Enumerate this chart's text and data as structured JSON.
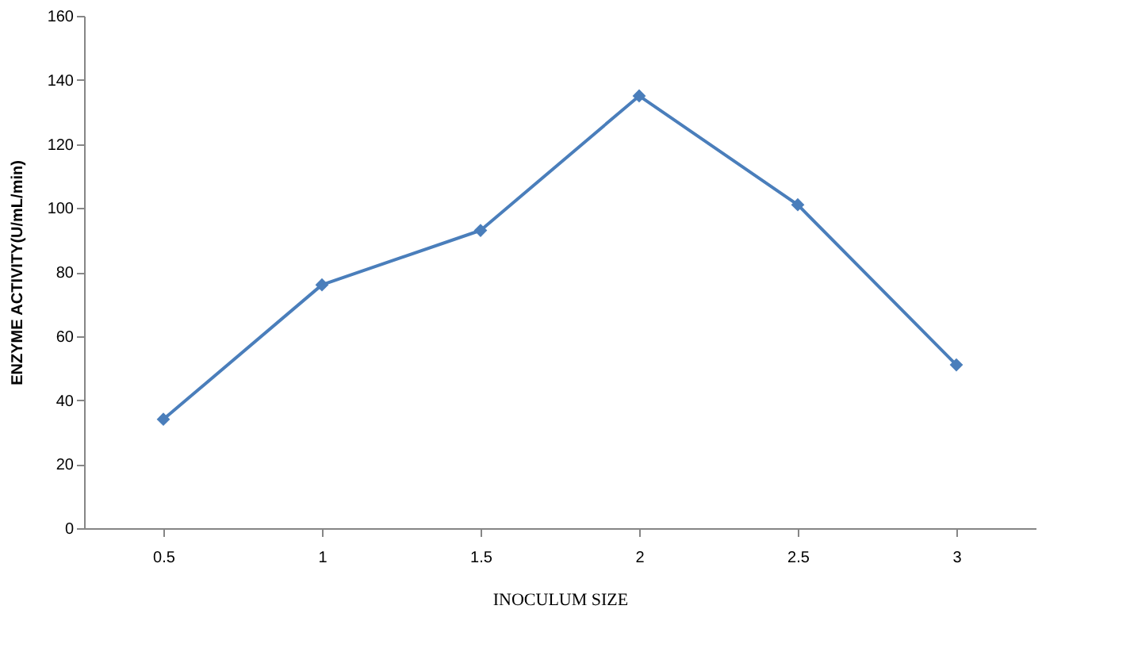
{
  "chart_data": {
    "type": "line",
    "xlabel": "INOCULUM  SIZE",
    "ylabel": "ENZYME ACTIVITY(U/mL/min)",
    "categories": [
      "0.5",
      "1",
      "1.5",
      "2",
      "2.5",
      "3"
    ],
    "series": [
      {
        "color": "#4a7ebb",
        "values": [
          34,
          76,
          93,
          135,
          101,
          51
        ]
      }
    ],
    "ylim": [
      0,
      160
    ],
    "yticks": [
      0,
      20,
      40,
      60,
      80,
      100,
      120,
      140,
      160
    ],
    "grid": false,
    "marker": "diamond",
    "line_style": "solid"
  }
}
